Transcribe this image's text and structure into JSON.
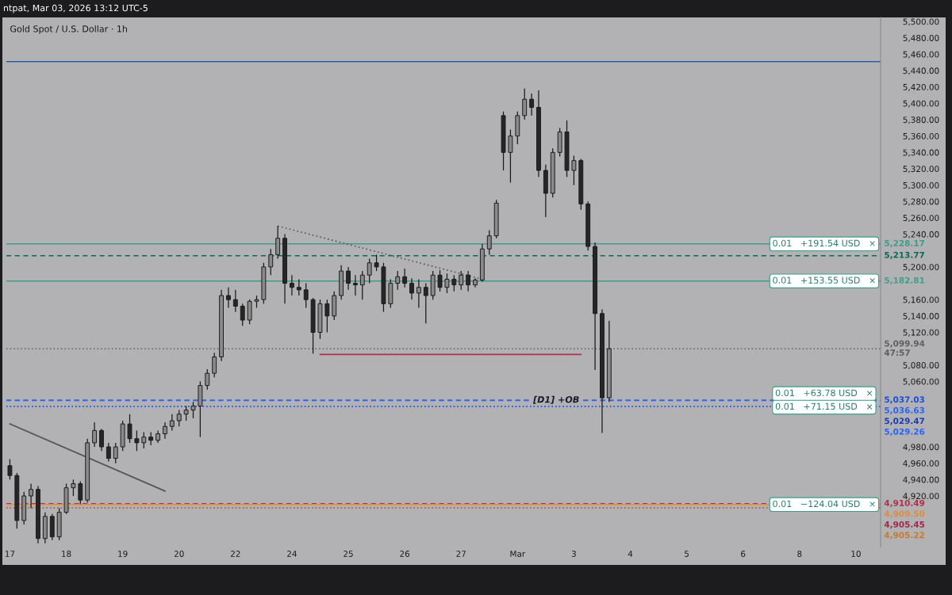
{
  "chart_data": {
    "type": "candlestick",
    "title": "Gold Spot / U.S. Dollar · 1h",
    "subtitle": "ntpat, Mar 03, 2026 13:12 UTC-5",
    "categories": [
      "17",
      null,
      null,
      null,
      null,
      null,
      null,
      null,
      "18",
      null,
      null,
      null,
      null,
      null,
      null,
      null,
      "19",
      null,
      null,
      null,
      null,
      null,
      null,
      null,
      "20",
      null,
      null,
      null,
      null,
      null,
      null,
      null,
      "22",
      null,
      null,
      null,
      null,
      null,
      null,
      null,
      "24",
      null,
      null,
      null,
      null,
      null,
      null,
      null,
      "25",
      null,
      null,
      null,
      null,
      null,
      null,
      null,
      "26",
      null,
      null,
      null,
      null,
      null,
      null,
      null,
      "27",
      null,
      null,
      null,
      null,
      null,
      null,
      null,
      "Mar",
      null,
      null,
      null,
      null,
      null,
      null,
      null,
      "3",
      null,
      null,
      null,
      null,
      null,
      null,
      null,
      "4",
      null,
      null,
      null,
      null,
      null,
      null,
      null,
      "5",
      null,
      null,
      null,
      null,
      null,
      null,
      null,
      "6",
      null,
      null,
      null,
      null,
      null,
      null,
      null,
      "8",
      null,
      null,
      null,
      null,
      null,
      null,
      null,
      "10",
      null,
      null,
      null
    ],
    "ohlc": [
      [
        4957,
        4965,
        4940,
        4945
      ],
      [
        4945,
        4948,
        4880,
        4890
      ],
      [
        4890,
        4925,
        4885,
        4920
      ],
      [
        4920,
        4935,
        4905,
        4928
      ],
      [
        4928,
        4932,
        4862,
        4868
      ],
      [
        4868,
        4900,
        4862,
        4895
      ],
      [
        4895,
        4898,
        4866,
        4870
      ],
      [
        4870,
        4905,
        4866,
        4900
      ],
      [
        4900,
        4935,
        4898,
        4930
      ],
      [
        4930,
        4940,
        4920,
        4935
      ],
      [
        4935,
        4938,
        4910,
        4915
      ],
      [
        4915,
        4990,
        4912,
        4985
      ],
      [
        4985,
        5010,
        4980,
        5000
      ],
      [
        5000,
        5002,
        4975,
        4980
      ],
      [
        4980,
        4985,
        4962,
        4966
      ],
      [
        4966,
        4985,
        4960,
        4980
      ],
      [
        4980,
        5012,
        4975,
        5008
      ],
      [
        5008,
        5020,
        4985,
        4990
      ],
      [
        4990,
        5000,
        4975,
        4985
      ],
      [
        4985,
        4998,
        4978,
        4992
      ],
      [
        4992,
        4998,
        4982,
        4988
      ],
      [
        4988,
        5000,
        4985,
        4996
      ],
      [
        4996,
        5010,
        4990,
        5005
      ],
      [
        5005,
        5020,
        5000,
        5012
      ],
      [
        5012,
        5025,
        5005,
        5020
      ],
      [
        5020,
        5030,
        5012,
        5025
      ],
      [
        5025,
        5035,
        5015,
        5030
      ],
      [
        5030,
        5060,
        4992,
        5055
      ],
      [
        5055,
        5075,
        5050,
        5070
      ],
      [
        5070,
        5095,
        5065,
        5090
      ],
      [
        5090,
        5172,
        5085,
        5165
      ],
      [
        5165,
        5175,
        5150,
        5160
      ],
      [
        5160,
        5172,
        5145,
        5152
      ],
      [
        5152,
        5155,
        5128,
        5135
      ],
      [
        5135,
        5160,
        5130,
        5158
      ],
      [
        5158,
        5165,
        5150,
        5160
      ],
      [
        5160,
        5205,
        5155,
        5200
      ],
      [
        5200,
        5222,
        5190,
        5215
      ],
      [
        5215,
        5250,
        5210,
        5235
      ],
      [
        5235,
        5240,
        5155,
        5180
      ],
      [
        5180,
        5190,
        5165,
        5175
      ],
      [
        5175,
        5185,
        5165,
        5172
      ],
      [
        5172,
        5180,
        5150,
        5160
      ],
      [
        5160,
        5162,
        5094,
        5120
      ],
      [
        5120,
        5160,
        5112,
        5155
      ],
      [
        5155,
        5160,
        5120,
        5140
      ],
      [
        5140,
        5170,
        5135,
        5165
      ],
      [
        5165,
        5202,
        5160,
        5195
      ],
      [
        5195,
        5200,
        5172,
        5180
      ],
      [
        5180,
        5190,
        5165,
        5178
      ],
      [
        5178,
        5195,
        5160,
        5190
      ],
      [
        5190,
        5210,
        5180,
        5205
      ],
      [
        5205,
        5215,
        5195,
        5200
      ],
      [
        5200,
        5205,
        5145,
        5155
      ],
      [
        5155,
        5185,
        5150,
        5180
      ],
      [
        5180,
        5195,
        5172,
        5188
      ],
      [
        5188,
        5198,
        5175,
        5180
      ],
      [
        5180,
        5186,
        5160,
        5168
      ],
      [
        5168,
        5185,
        5150,
        5175
      ],
      [
        5175,
        5180,
        5131,
        5165
      ],
      [
        5165,
        5195,
        5160,
        5190
      ],
      [
        5190,
        5196,
        5170,
        5175
      ],
      [
        5175,
        5192,
        5168,
        5185
      ],
      [
        5185,
        5190,
        5170,
        5178
      ],
      [
        5178,
        5195,
        5172,
        5190
      ],
      [
        5190,
        5195,
        5170,
        5178
      ],
      [
        5178,
        5186,
        5175,
        5184
      ],
      [
        5184,
        5228,
        5182,
        5222
      ],
      [
        5222,
        5245,
        5215,
        5238
      ],
      [
        5238,
        5282,
        5235,
        5278
      ],
      [
        5385,
        5390,
        5318,
        5340
      ],
      [
        5340,
        5368,
        5303,
        5360
      ],
      [
        5360,
        5390,
        5350,
        5385
      ],
      [
        5385,
        5418,
        5380,
        5405
      ],
      [
        5405,
        5412,
        5385,
        5395
      ],
      [
        5395,
        5416,
        5310,
        5318
      ],
      [
        5318,
        5325,
        5261,
        5290
      ],
      [
        5290,
        5345,
        5285,
        5340
      ],
      [
        5340,
        5370,
        5335,
        5365
      ],
      [
        5365,
        5379,
        5310,
        5318
      ],
      [
        5318,
        5336,
        5300,
        5330
      ],
      [
        5330,
        5332,
        5270,
        5277
      ],
      [
        5277,
        5280,
        5220,
        5225
      ],
      [
        5225,
        5230,
        5074,
        5143
      ],
      [
        5143,
        5148,
        4997,
        5040
      ],
      [
        5040,
        5134,
        5035,
        5099.94
      ],
      null,
      null,
      null,
      null,
      null,
      null,
      null,
      null,
      null,
      null,
      null,
      null,
      null,
      null,
      null,
      null,
      null,
      null,
      null,
      null,
      null,
      null,
      null,
      null,
      null,
      null,
      null,
      null,
      null,
      null,
      null,
      null,
      null,
      null,
      null,
      null,
      null,
      null
    ],
    "series": [
      {
        "type": "line",
        "color": "#b0304a",
        "line_style": "solid",
        "values": [
          null,
          null,
          null,
          null,
          null,
          null,
          null,
          null,
          null,
          null,
          null,
          null,
          null,
          null,
          null,
          null,
          null,
          null,
          null,
          null,
          null,
          null,
          null,
          null,
          null,
          null,
          null,
          null,
          null,
          null,
          null,
          null,
          null,
          null,
          null,
          null,
          null,
          null,
          null,
          null,
          null,
          null,
          null,
          null,
          5093,
          null,
          null,
          null,
          null,
          null,
          null,
          null,
          null,
          null,
          null,
          null,
          null,
          null,
          null,
          null,
          null,
          null,
          null,
          null,
          null,
          null,
          null,
          null,
          null,
          null,
          null,
          null,
          null,
          null,
          null,
          null,
          null,
          null,
          null,
          null,
          null,
          5093,
          null,
          null,
          null,
          null,
          null,
          null,
          null,
          null,
          null,
          null,
          null,
          null,
          null,
          null,
          null,
          null,
          null,
          null,
          null,
          null,
          null,
          null,
          null,
          null,
          null,
          null,
          null,
          null,
          null,
          null,
          null,
          null,
          null,
          null,
          null,
          null,
          null,
          null,
          null,
          null,
          null,
          null
        ]
      },
      {
        "type": "line",
        "color": "#555555",
        "line_style": "dotted",
        "values": [
          null,
          null,
          null,
          null,
          null,
          null,
          null,
          null,
          null,
          null,
          null,
          null,
          null,
          null,
          null,
          null,
          null,
          null,
          null,
          null,
          null,
          null,
          null,
          null,
          null,
          null,
          null,
          null,
          null,
          null,
          null,
          null,
          null,
          null,
          null,
          null,
          null,
          null,
          5250,
          null,
          null,
          null,
          null,
          null,
          null,
          null,
          null,
          null,
          null,
          null,
          null,
          null,
          null,
          null,
          null,
          null,
          null,
          null,
          null,
          null,
          null,
          null,
          null,
          null,
          null,
          null,
          null,
          5185,
          null,
          null,
          null,
          null,
          null,
          null,
          null,
          null,
          null,
          null,
          null,
          null,
          null,
          null,
          null,
          null,
          null,
          null,
          null,
          null,
          null,
          null,
          null,
          null,
          null,
          null,
          null,
          null,
          null,
          null,
          null,
          null,
          null,
          null,
          null,
          null,
          null,
          null,
          null,
          null,
          null,
          null,
          null,
          null,
          null,
          null,
          null,
          null,
          null,
          null,
          null,
          null,
          null,
          null,
          null,
          null
        ]
      },
      {
        "type": "line",
        "color": "#555555",
        "line_style": "solid",
        "values": [
          5008,
          null,
          null,
          null,
          null,
          null,
          null,
          null,
          null,
          null,
          null,
          null,
          null,
          null,
          null,
          null,
          null,
          null,
          null,
          null,
          null,
          null,
          4926,
          null,
          null,
          null,
          null,
          null,
          null,
          null,
          null,
          null,
          null,
          null,
          null,
          null,
          null,
          null,
          null,
          null,
          null,
          null,
          null,
          null,
          null,
          null,
          null,
          null,
          null,
          null,
          null,
          null,
          null,
          null,
          null,
          null,
          null,
          null,
          null,
          null,
          null,
          null,
          null,
          null,
          null,
          null,
          null,
          null,
          null,
          null,
          null,
          null,
          null,
          null,
          null,
          null,
          null,
          null,
          null,
          null,
          null,
          null,
          null,
          null,
          null,
          null,
          null,
          null,
          null,
          null,
          null,
          null,
          null,
          null,
          null,
          null,
          null,
          null,
          null,
          null,
          null,
          null,
          null,
          null,
          null,
          null,
          null,
          null,
          null,
          null,
          null,
          null,
          null,
          null,
          null,
          null,
          null,
          null,
          null,
          null,
          null,
          null,
          null,
          null
        ]
      }
    ],
    "ref_lines": [
      {
        "axis": "y",
        "value": 5451,
        "color": "#2a5caa",
        "line_style": "solid"
      },
      {
        "axis": "y",
        "value": 5228.17,
        "label": "5,228.17",
        "color": "#3f9c8a",
        "line_style": "solid"
      },
      {
        "axis": "y",
        "value": 5213.77,
        "label": "5,213.77",
        "color": "#0b6b50",
        "line_style": "dashed"
      },
      {
        "axis": "y",
        "value": 5182.81,
        "label": "5,182.81",
        "color": "#3f9c8a",
        "line_style": "solid"
      },
      {
        "axis": "y",
        "value": 5099.94,
        "label": "5,099.94\n47:57",
        "color": "#5e5e5e",
        "line_style": "dotted"
      },
      {
        "axis": "y",
        "value": 5037.03,
        "label": "5,037.03",
        "color": "#1a4fd6",
        "line_style": "dashed"
      },
      {
        "axis": "y",
        "value": 5036.63,
        "label": "5,036.63",
        "color": "#2962ff",
        "line_style": "dashed"
      },
      {
        "axis": "y",
        "value": 5029.47,
        "label": "5,029.47",
        "color": "#1a3fb0",
        "line_style": "dotted"
      },
      {
        "axis": "y",
        "value": 5029.26,
        "label": "5,029.26",
        "color": "#2962ff",
        "line_style": "dotted"
      },
      {
        "axis": "y",
        "value": 4910.49,
        "label": "4,910.49",
        "color": "#b0304a",
        "line_style": "dashed"
      },
      {
        "axis": "y",
        "value": 4909.5,
        "label": "4,909.50",
        "color": "#e08a3c",
        "line_style": "solid"
      },
      {
        "axis": "y",
        "value": 4905.45,
        "label": "4,905.45",
        "color": "#a02848",
        "line_style": "dotted"
      },
      {
        "axis": "y",
        "value": 4905.22,
        "label": "4,905.22",
        "color": "#c87a2c",
        "line_style": "dotted"
      }
    ],
    "annotations": [
      {
        "text": "0.01   +191.54 USD   ×",
        "x": "8",
        "y": 5228.17
      },
      {
        "text": "0.01   +153.55 USD   ×",
        "x": "8",
        "y": 5182.81
      },
      {
        "text": "0.01   +63.78 USD   ×",
        "x": "8",
        "y": 5037.03
      },
      {
        "text": "0.01   +71.15 USD   ×",
        "x": "8",
        "y": 5036.63
      },
      {
        "text": "0.01   −124.04 USD   ×",
        "x": "8",
        "y": 4909.5
      },
      {
        "text": "[D1] +OB",
        "x": "3",
        "y": 5037
      }
    ],
    "legend": "right",
    "ylim": [
      4858,
      5505
    ],
    "yticks": [
      {
        "value": 5500,
        "label": "5,500.00"
      },
      {
        "value": 5480,
        "label": "5,480.00"
      },
      {
        "value": 5460,
        "label": "5,460.00"
      },
      {
        "value": 5440,
        "label": "5,440.00"
      },
      {
        "value": 5420,
        "label": "5,420.00"
      },
      {
        "value": 5400,
        "label": "5,400.00"
      },
      {
        "value": 5380,
        "label": "5,380.00"
      },
      {
        "value": 5360,
        "label": "5,360.00"
      },
      {
        "value": 5340,
        "label": "5,340.00"
      },
      {
        "value": 5320,
        "label": "5,320.00"
      },
      {
        "value": 5300,
        "label": "5,300.00"
      },
      {
        "value": 5280,
        "label": "5,280.00"
      },
      {
        "value": 5260,
        "label": "5,260.00"
      },
      {
        "value": 5240,
        "label": "5,240.00"
      },
      {
        "value": 5200,
        "label": "5,200.00"
      },
      {
        "value": 5160,
        "label": "5,160.00"
      },
      {
        "value": 5140,
        "label": "5,140.00"
      },
      {
        "value": 5120,
        "label": "5,120.00"
      },
      {
        "value": 5080,
        "label": "5,080.00"
      },
      {
        "value": 5060,
        "label": "5,060.00"
      },
      {
        "value": 4980,
        "label": "4,980.00"
      },
      {
        "value": 4960,
        "label": "4,960.00"
      },
      {
        "value": 4940,
        "label": "4,940.00"
      },
      {
        "value": 4920,
        "label": "4,920.00"
      }
    ]
  }
}
